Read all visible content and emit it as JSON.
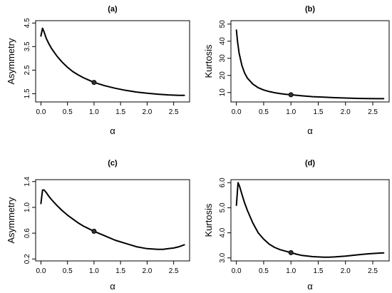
{
  "chart_data": [
    {
      "type": "line",
      "title": "(a)",
      "xlabel": "α",
      "ylabel": "Asymmetry",
      "xlim": [
        -0.1,
        2.8
      ],
      "ylim": [
        1.15,
        4.6
      ],
      "xticks": [
        0.0,
        0.5,
        1.0,
        1.5,
        2.0,
        2.5
      ],
      "xtick_labels": [
        "0.0",
        "0.5",
        "1.0",
        "1.5",
        "2.0",
        "2.5"
      ],
      "yticks": [
        1.5,
        2.5,
        3.5,
        4.5
      ],
      "ytick_labels": [
        "1.5",
        "2.5",
        "3.5",
        "4.5"
      ],
      "grid": false,
      "series": [
        {
          "x": [
            0.0,
            0.03,
            0.06,
            0.1,
            0.15,
            0.2,
            0.3,
            0.4,
            0.5,
            0.6,
            0.7,
            0.8,
            0.9,
            1.0,
            1.2,
            1.4,
            1.6,
            1.8,
            2.0,
            2.2,
            2.4,
            2.6,
            2.7
          ],
          "y": [
            3.95,
            4.28,
            4.12,
            3.85,
            3.62,
            3.42,
            3.1,
            2.84,
            2.62,
            2.44,
            2.3,
            2.18,
            2.08,
            1.98,
            1.84,
            1.73,
            1.64,
            1.57,
            1.52,
            1.48,
            1.45,
            1.43,
            1.43
          ]
        }
      ],
      "marker": {
        "x": 1.0,
        "y": 1.98
      }
    },
    {
      "type": "line",
      "title": "(b)",
      "xlabel": "α",
      "ylabel": "Kurtosis",
      "xlim": [
        -0.1,
        2.8
      ],
      "ylim": [
        4.5,
        52
      ],
      "xticks": [
        0.0,
        0.5,
        1.0,
        1.5,
        2.0,
        2.5
      ],
      "xtick_labels": [
        "0.0",
        "0.5",
        "1.0",
        "1.5",
        "2.0",
        "2.5"
      ],
      "yticks": [
        10,
        20,
        30,
        40,
        50
      ],
      "ytick_labels": [
        "10",
        "20",
        "30",
        "40",
        "50"
      ],
      "grid": false,
      "series": [
        {
          "x": [
            0.0,
            0.02,
            0.05,
            0.1,
            0.15,
            0.2,
            0.3,
            0.4,
            0.5,
            0.6,
            0.7,
            0.8,
            0.9,
            1.0,
            1.2,
            1.4,
            1.6,
            1.8,
            2.0,
            2.2,
            2.4,
            2.6,
            2.7
          ],
          "y": [
            46.5,
            40.0,
            33.0,
            26.0,
            21.5,
            18.5,
            15.0,
            12.8,
            11.5,
            10.6,
            9.9,
            9.4,
            9.0,
            8.7,
            8.1,
            7.6,
            7.3,
            7.0,
            6.8,
            6.6,
            6.5,
            6.4,
            6.4
          ]
        }
      ],
      "marker": {
        "x": 1.0,
        "y": 8.7
      }
    },
    {
      "type": "line",
      "title": "(c)",
      "xlabel": "α",
      "ylabel": "Asymmetry",
      "xlim": [
        -0.1,
        2.8
      ],
      "ylim": [
        0.17,
        1.43
      ],
      "xticks": [
        0.0,
        0.5,
        1.0,
        1.5,
        2.0,
        2.5
      ],
      "xtick_labels": [
        "0.0",
        "0.5",
        "1.0",
        "1.5",
        "2.0",
        "2.5"
      ],
      "yticks": [
        0.2,
        0.6,
        1.0,
        1.4
      ],
      "ytick_labels": [
        "0.2",
        "0.6",
        "1.0",
        "1.4"
      ],
      "grid": false,
      "series": [
        {
          "x": [
            0.0,
            0.03,
            0.06,
            0.1,
            0.15,
            0.2,
            0.3,
            0.4,
            0.5,
            0.6,
            0.7,
            0.8,
            0.9,
            1.0,
            1.2,
            1.4,
            1.6,
            1.8,
            2.0,
            2.2,
            2.3,
            2.4,
            2.5,
            2.6,
            2.7
          ],
          "y": [
            1.06,
            1.27,
            1.27,
            1.23,
            1.17,
            1.12,
            1.03,
            0.95,
            0.88,
            0.82,
            0.76,
            0.71,
            0.67,
            0.63,
            0.56,
            0.49,
            0.44,
            0.39,
            0.36,
            0.35,
            0.35,
            0.36,
            0.37,
            0.39,
            0.42
          ]
        }
      ],
      "marker": {
        "x": 1.0,
        "y": 0.63
      }
    },
    {
      "type": "line",
      "title": "(d)",
      "xlabel": "α",
      "ylabel": "Kurtosis",
      "xlim": [
        -0.1,
        2.8
      ],
      "ylim": [
        2.88,
        6.12
      ],
      "xticks": [
        0.0,
        0.5,
        1.0,
        1.5,
        2.0,
        2.5
      ],
      "xtick_labels": [
        "0.0",
        "0.5",
        "1.0",
        "1.5",
        "2.0",
        "2.5"
      ],
      "yticks": [
        3.0,
        4.0,
        5.0,
        6.0
      ],
      "ytick_labels": [
        "3.0",
        "4.0",
        "5.0",
        "6.0"
      ],
      "grid": false,
      "series": [
        {
          "x": [
            0.0,
            0.03,
            0.06,
            0.1,
            0.15,
            0.2,
            0.3,
            0.4,
            0.5,
            0.6,
            0.7,
            0.8,
            0.9,
            1.0,
            1.1,
            1.2,
            1.4,
            1.6,
            1.7,
            1.8,
            2.0,
            2.2,
            2.4,
            2.6,
            2.7
          ],
          "y": [
            5.1,
            6.0,
            5.85,
            5.55,
            5.2,
            4.9,
            4.4,
            4.0,
            3.75,
            3.55,
            3.42,
            3.33,
            3.27,
            3.21,
            3.15,
            3.1,
            3.05,
            3.03,
            3.03,
            3.04,
            3.07,
            3.12,
            3.16,
            3.19,
            3.2
          ]
        }
      ],
      "marker": {
        "x": 1.0,
        "y": 3.21
      }
    }
  ]
}
